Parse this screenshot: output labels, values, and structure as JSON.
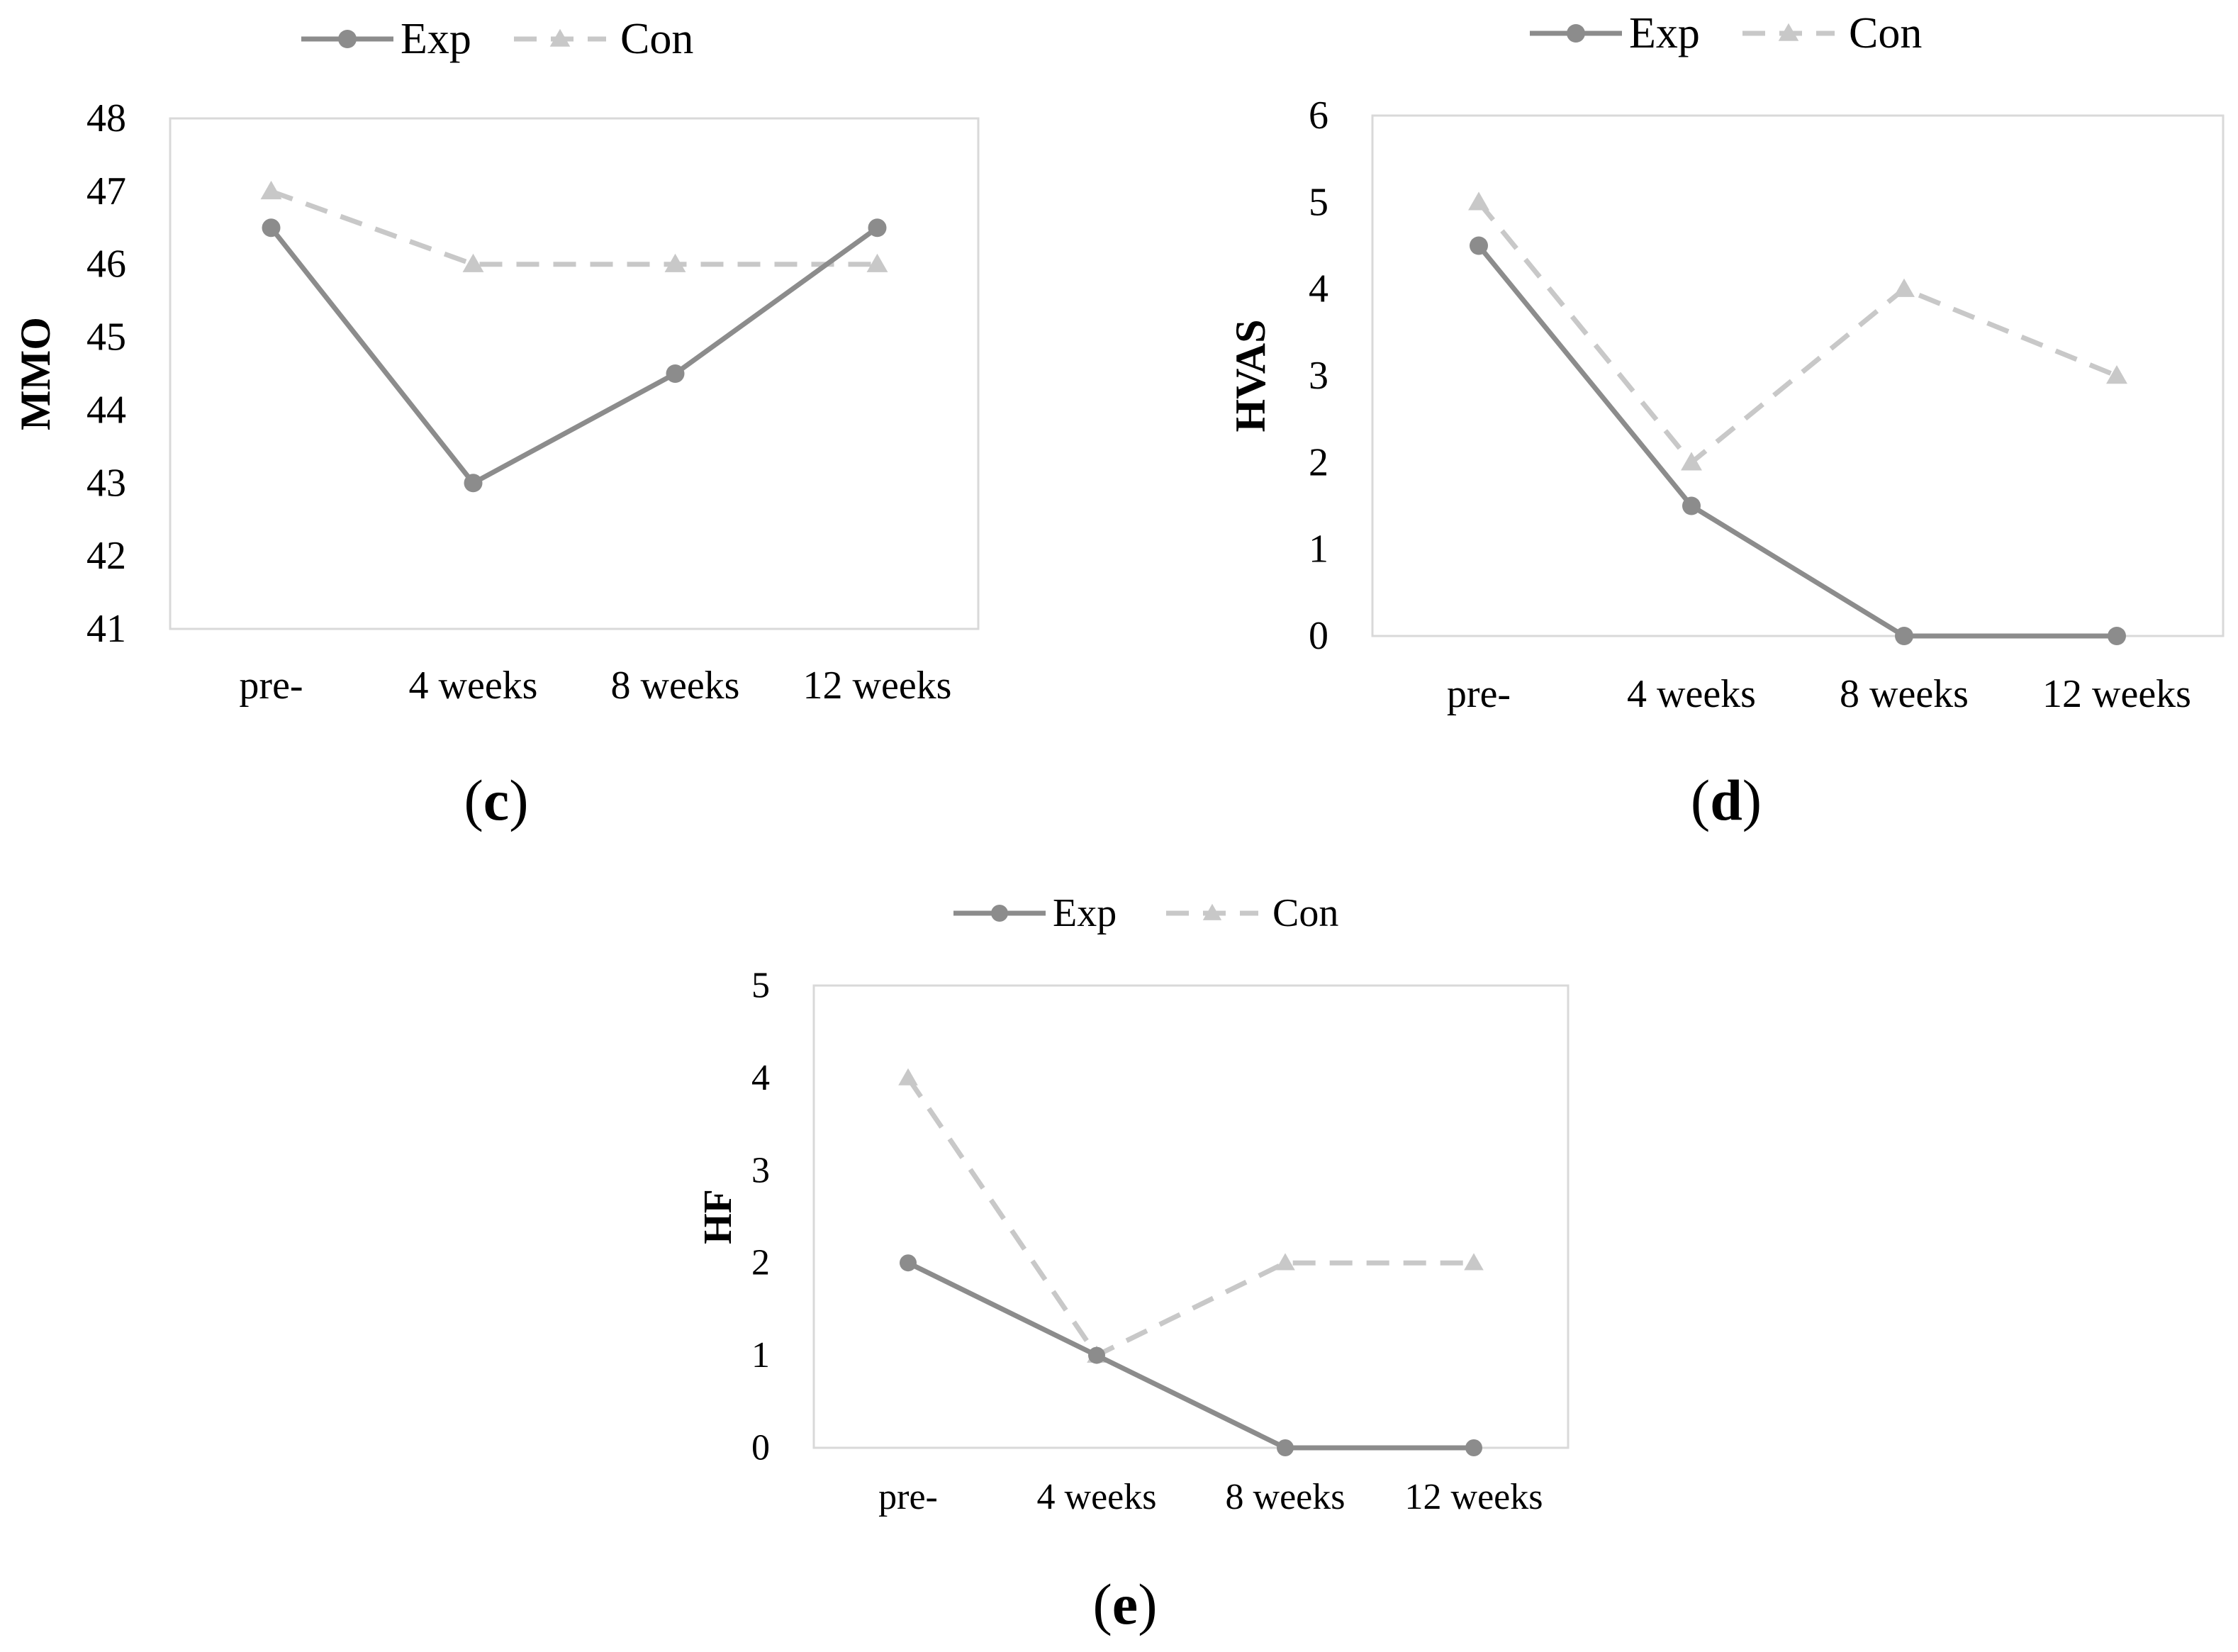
{
  "colors": {
    "exp": "#8c8c8c",
    "con": "#c8c8c8",
    "frame": "#d9d9d9",
    "text": "#000000"
  },
  "chart_data": [
    {
      "type": "line",
      "panel_label": "c",
      "title": "",
      "xlabel": "",
      "ylabel": "MMO",
      "categories": [
        "pre-",
        "4 weeks",
        "8 weeks",
        "12 weeks"
      ],
      "ylim": [
        41,
        48
      ],
      "yticks": [
        41,
        42,
        43,
        44,
        45,
        46,
        47,
        48
      ],
      "grid": false,
      "legend": "top-center",
      "series": [
        {
          "name": "Exp",
          "values": [
            46.5,
            43,
            44.5,
            46.5
          ],
          "style": "solid",
          "marker": "circle"
        },
        {
          "name": "Con",
          "values": [
            47,
            46,
            46,
            46
          ],
          "style": "dashed",
          "marker": "triangle"
        }
      ]
    },
    {
      "type": "line",
      "panel_label": "d",
      "title": "",
      "xlabel": "",
      "ylabel": "HVAS",
      "categories": [
        "pre-",
        "4 weeks",
        "8 weeks",
        "12 weeks"
      ],
      "ylim": [
        0,
        6
      ],
      "yticks": [
        0,
        1,
        2,
        3,
        4,
        5,
        6
      ],
      "grid": false,
      "legend": "top-center",
      "series": [
        {
          "name": "Exp",
          "values": [
            4.5,
            1.5,
            0,
            0
          ],
          "style": "solid",
          "marker": "circle"
        },
        {
          "name": "Con",
          "values": [
            5,
            2,
            4,
            3
          ],
          "style": "dashed",
          "marker": "triangle"
        }
      ]
    },
    {
      "type": "line",
      "panel_label": "e",
      "title": "",
      "xlabel": "",
      "ylabel": "HF",
      "categories": [
        "pre-",
        "4 weeks",
        "8 weeks",
        "12 weeks"
      ],
      "ylim": [
        0,
        5
      ],
      "yticks": [
        0,
        1,
        2,
        3,
        4,
        5
      ],
      "grid": false,
      "legend": "top-center",
      "series": [
        {
          "name": "Exp",
          "values": [
            2,
            1,
            0,
            0
          ],
          "style": "solid",
          "marker": "circle"
        },
        {
          "name": "Con",
          "values": [
            4,
            1,
            2,
            2
          ],
          "style": "dashed",
          "marker": "triangle"
        }
      ]
    }
  ]
}
